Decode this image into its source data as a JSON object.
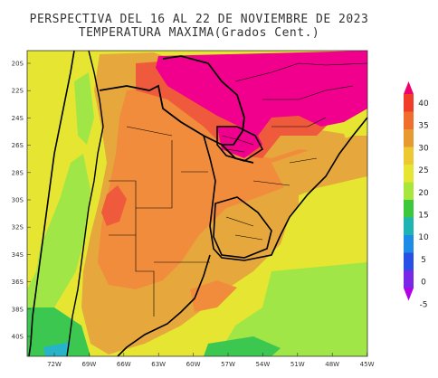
{
  "title_line1": "PERSPECTIVA DEL 16 AL 22 DE NOVIEMBRE DE 2023",
  "title_line2": "TEMPERATURA MAXIMA(Grados Cent.)",
  "lat_labels": [
    "20S",
    "22S",
    "24S",
    "26S",
    "28S",
    "30S",
    "32S",
    "34S",
    "36S",
    "38S",
    "40S"
  ],
  "lon_labels": [
    "72W",
    "69W",
    "66W",
    "63W",
    "60W",
    "57W",
    "54W",
    "51W",
    "48W",
    "45W"
  ],
  "colorbar": {
    "levels": [
      "40",
      "35",
      "30",
      "25",
      "20",
      "15",
      "10",
      "5",
      "0",
      "-5"
    ],
    "colors": [
      "#f0006e",
      "#f03c28",
      "#f06e2c",
      "#e89a30",
      "#ecc832",
      "#e6e632",
      "#a8e63c",
      "#3cc83c",
      "#1eb4b4",
      "#1e8ce6",
      "#2850e6",
      "#7828e6",
      "#b400e6"
    ]
  },
  "field_colors": {
    "c40": "#f0008c",
    "c35": "#f05a3c",
    "c30": "#f08c3c",
    "c25": "#e6a83c",
    "c20": "#e6e632",
    "c15": "#a0e646",
    "c10": "#3cc850",
    "c5": "#28b4c8"
  }
}
